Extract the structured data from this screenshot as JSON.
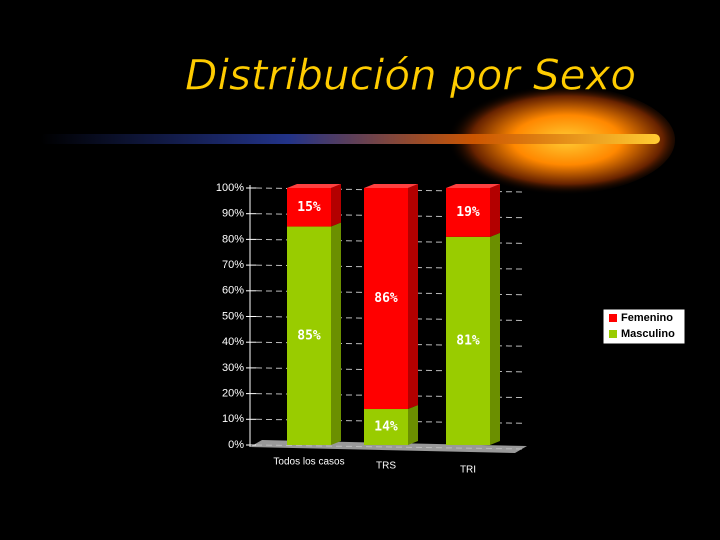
{
  "chart_data": {
    "type": "bar",
    "stacked": true,
    "title": "Distribución por Sexo",
    "categories": [
      "Todos los casos",
      "TRS",
      "TRI"
    ],
    "series": [
      {
        "name": "Masculino",
        "color": "#99cc00",
        "values": [
          85,
          14,
          81
        ],
        "value_labels": [
          "85%",
          "14%",
          "81%"
        ]
      },
      {
        "name": "Femenino",
        "color": "#ff0000",
        "values": [
          15,
          86,
          19
        ],
        "value_labels": [
          "15%",
          "86%",
          "19%"
        ]
      }
    ],
    "ylim": [
      0,
      100
    ],
    "yticks": [
      {
        "value": 0,
        "label": "0%"
      },
      {
        "value": 10,
        "label": "10%"
      },
      {
        "value": 20,
        "label": "20%"
      },
      {
        "value": 30,
        "label": "30%"
      },
      {
        "value": 40,
        "label": "40%"
      },
      {
        "value": 50,
        "label": "50%"
      },
      {
        "value": 60,
        "label": "60%"
      },
      {
        "value": 70,
        "label": "70%"
      },
      {
        "value": 80,
        "label": "80%"
      },
      {
        "value": 90,
        "label": "90%"
      },
      {
        "value": 100,
        "label": "100%"
      }
    ],
    "grid": true,
    "legend": "right"
  }
}
